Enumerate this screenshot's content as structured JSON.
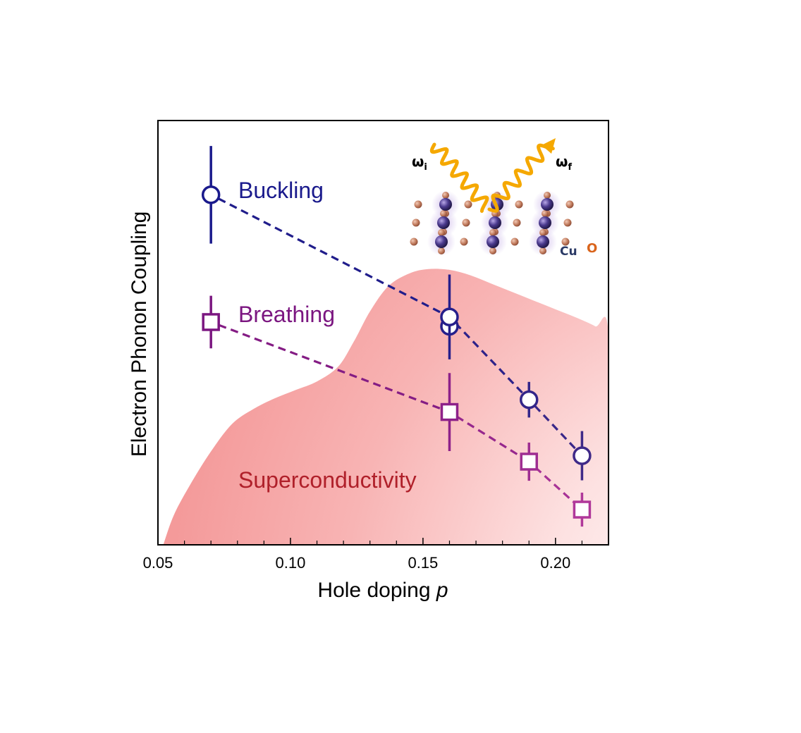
{
  "chart_data": {
    "type": "scatter",
    "xlabel": "Hole doping",
    "xlabel_var": "p",
    "ylabel": "Electron Phonon Coupling",
    "xlim": [
      0.05,
      0.22
    ],
    "ylim": [
      0,
      1
    ],
    "xticks": [
      0.05,
      0.1,
      0.15,
      0.2
    ],
    "xtick_labels": [
      "0.05",
      "0.10",
      "0.15",
      "0.20"
    ],
    "yticks_shown": false,
    "grid": false,
    "series": [
      {
        "name": "Buckling",
        "color": "#1a1a8c",
        "color_end": "#3f2a88",
        "marker": "circle",
        "linestyle": "dashed",
        "points": [
          {
            "x": 0.07,
            "y": 0.825,
            "err": 0.115
          },
          {
            "x": 0.16,
            "y": 0.537,
            "err": 0.1
          },
          {
            "x": 0.19,
            "y": 0.342,
            "err": 0.042
          },
          {
            "x": 0.21,
            "y": 0.21,
            "err": 0.058
          }
        ],
        "extra_points": [
          {
            "x": 0.16,
            "y": 0.515
          }
        ]
      },
      {
        "name": "Breathing",
        "color": "#7b1680",
        "color_end": "#b0389a",
        "marker": "square",
        "linestyle": "dashed",
        "points": [
          {
            "x": 0.07,
            "y": 0.525,
            "err": 0.062
          },
          {
            "x": 0.16,
            "y": 0.313,
            "err": 0.092
          },
          {
            "x": 0.19,
            "y": 0.196,
            "err": 0.045
          },
          {
            "x": 0.21,
            "y": 0.083,
            "err": 0.04
          }
        ]
      }
    ],
    "regions": [
      {
        "name": "Superconductivity",
        "color": "#f5a0a0",
        "boundary": [
          [
            0.052,
            0.0
          ],
          [
            0.056,
            0.07
          ],
          [
            0.062,
            0.14
          ],
          [
            0.07,
            0.22
          ],
          [
            0.078,
            0.285
          ],
          [
            0.086,
            0.32
          ],
          [
            0.094,
            0.345
          ],
          [
            0.102,
            0.365
          ],
          [
            0.11,
            0.385
          ],
          [
            0.118,
            0.42
          ],
          [
            0.124,
            0.48
          ],
          [
            0.13,
            0.55
          ],
          [
            0.137,
            0.61
          ],
          [
            0.145,
            0.64
          ],
          [
            0.152,
            0.65
          ],
          [
            0.16,
            0.648
          ],
          [
            0.168,
            0.635
          ],
          [
            0.176,
            0.615
          ],
          [
            0.184,
            0.595
          ],
          [
            0.192,
            0.575
          ],
          [
            0.2,
            0.555
          ],
          [
            0.208,
            0.535
          ],
          [
            0.215,
            0.515
          ],
          [
            0.22,
            0.495
          ],
          [
            0.22,
            0.0
          ]
        ]
      }
    ],
    "annotations": {
      "omega_i": "ω",
      "omega_i_sub": "i",
      "omega_f": "ω",
      "omega_f_sub": "f",
      "cu": "Cu",
      "o": "O"
    },
    "inset_colors": {
      "photon": "#f5a800",
      "cu_atom": "#3a2b6e",
      "o_atom": "#c0785a",
      "cu_text": "#2b3a66",
      "o_text": "#d9641c"
    }
  }
}
